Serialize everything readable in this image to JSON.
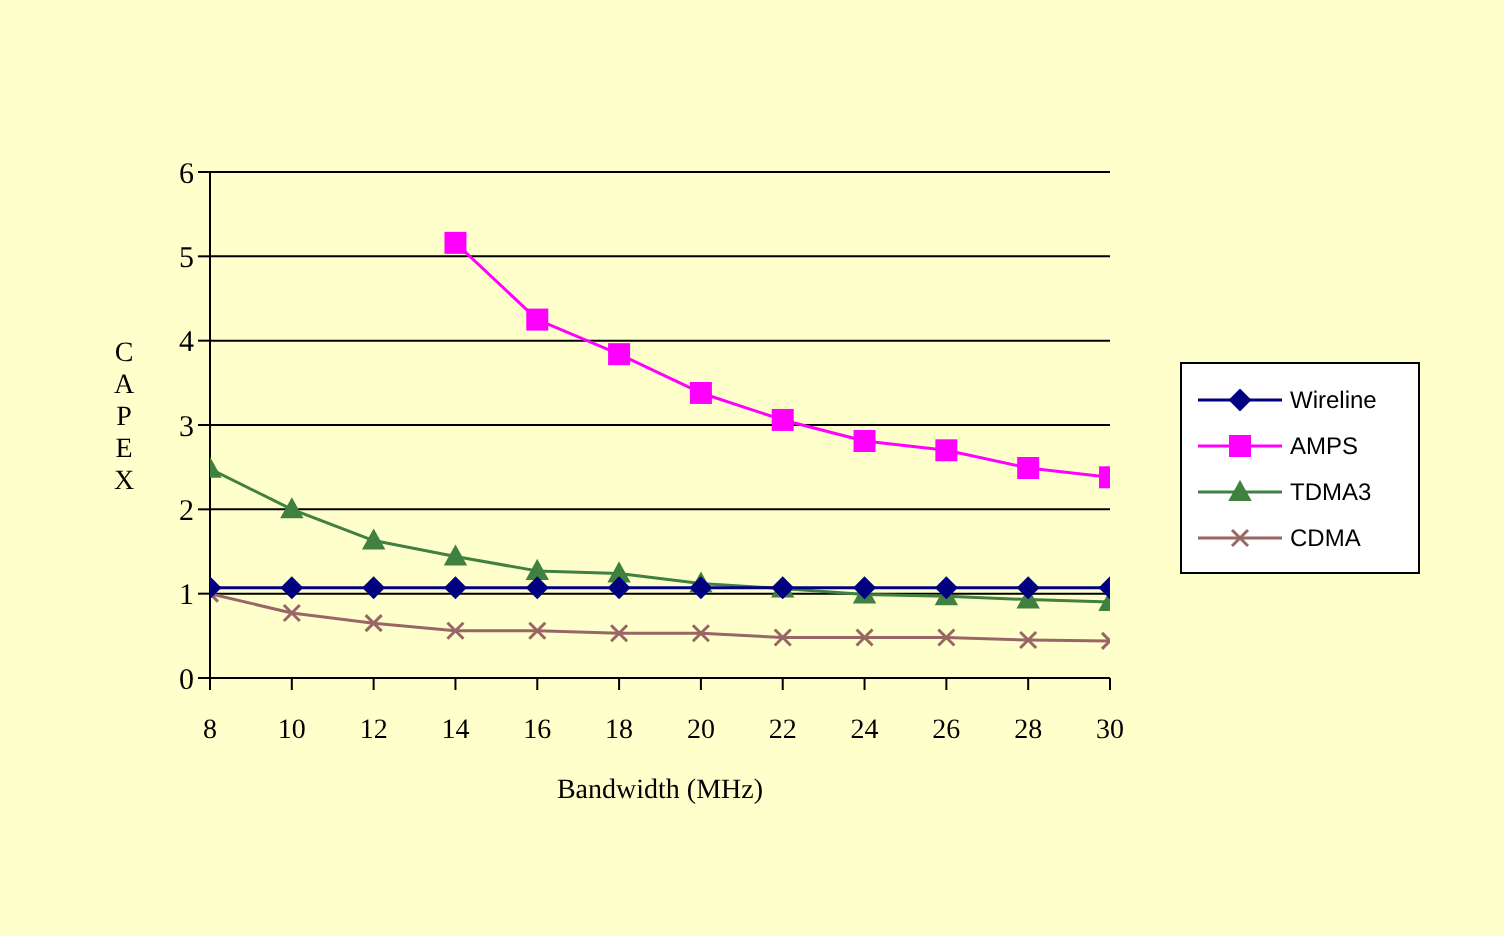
{
  "chart_data": {
    "type": "line",
    "xlabel": "Bandwidth (MHz)",
    "ylabel": "CAPEX",
    "x": [
      8,
      10,
      12,
      14,
      16,
      18,
      20,
      22,
      24,
      26,
      28,
      30
    ],
    "series": [
      {
        "name": "Wireline",
        "color": "#000080",
        "marker": "diamond",
        "values": [
          1.07,
          1.07,
          1.07,
          1.07,
          1.07,
          1.07,
          1.07,
          1.07,
          1.07,
          1.07,
          1.07,
          1.07
        ]
      },
      {
        "name": "AMPS",
        "color": "#ff00ff",
        "marker": "square",
        "values": [
          null,
          null,
          null,
          5.16,
          4.25,
          3.84,
          3.38,
          3.06,
          2.81,
          2.7,
          2.49,
          2.38
        ]
      },
      {
        "name": "TDMA3",
        "color": "#408040",
        "marker": "triangle",
        "values": [
          2.48,
          2.0,
          1.63,
          1.44,
          1.27,
          1.24,
          1.12,
          1.06,
          0.99,
          0.97,
          0.93,
          0.9
        ]
      },
      {
        "name": "CDMA",
        "color": "#996666",
        "marker": "cross",
        "values": [
          1.0,
          0.77,
          0.65,
          0.56,
          0.56,
          0.53,
          0.53,
          0.48,
          0.48,
          0.48,
          0.45,
          0.44
        ]
      }
    ],
    "xlim": [
      8,
      30
    ],
    "xticks": [
      8,
      10,
      12,
      14,
      16,
      18,
      20,
      22,
      24,
      26,
      28,
      30
    ],
    "ylim": [
      0,
      6
    ],
    "yticks": [
      0,
      1,
      2,
      3,
      4,
      5,
      6
    ],
    "grid": "y",
    "legend": "right",
    "line_style": "solid"
  }
}
